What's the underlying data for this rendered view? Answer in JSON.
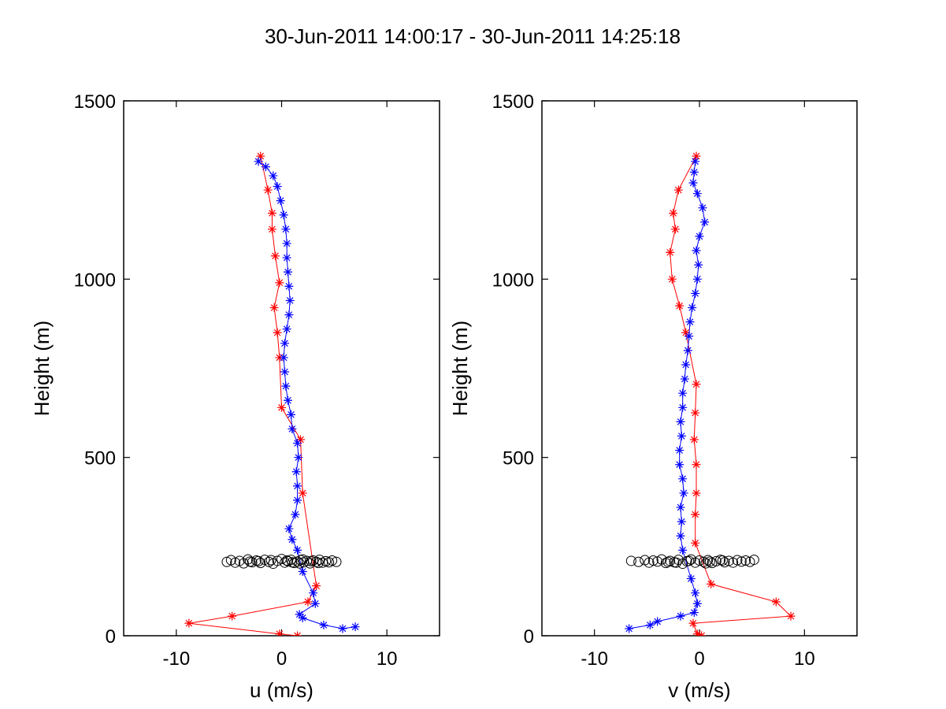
{
  "figure": {
    "title": "30-Jun-2011 14:00:17 - 30-Jun-2011 14:25:18"
  },
  "chart_data": [
    {
      "type": "line",
      "xlabel": "u (m/s)",
      "ylabel": "Height (m)",
      "xlim": [
        -15,
        15
      ],
      "ylim": [
        0,
        1500
      ],
      "xticks": [
        -10,
        0,
        10
      ],
      "yticks": [
        0,
        500,
        1000,
        1500
      ],
      "grid": false,
      "legend": "none",
      "series": [
        {
          "color": "#ff0000",
          "marker": "asterisk",
          "points": [
            [
              1.5,
              0
            ],
            [
              -0.2,
              5
            ],
            [
              -8.8,
              35
            ],
            [
              -4.7,
              55
            ],
            [
              2.5,
              95
            ],
            [
              3.3,
              140
            ],
            [
              2.0,
              400
            ],
            [
              1.8,
              550
            ],
            [
              0.0,
              640
            ],
            [
              -0.2,
              780
            ],
            [
              -0.4,
              850
            ],
            [
              -0.7,
              920
            ],
            [
              -0.2,
              990
            ],
            [
              -0.6,
              1065
            ],
            [
              -0.9,
              1140
            ],
            [
              -0.9,
              1185
            ],
            [
              -1.3,
              1250
            ],
            [
              -2.0,
              1345
            ]
          ]
        },
        {
          "color": "#0000ff",
          "marker": "asterisk",
          "points": [
            [
              7.0,
              25
            ],
            [
              5.8,
              20
            ],
            [
              4.0,
              30
            ],
            [
              2.0,
              50
            ],
            [
              1.7,
              60
            ],
            [
              3.2,
              90
            ],
            [
              3.0,
              120
            ],
            [
              2.0,
              180
            ],
            [
              1.5,
              240
            ],
            [
              1.0,
              270
            ],
            [
              0.7,
              300
            ],
            [
              1.3,
              340
            ],
            [
              1.5,
              380
            ],
            [
              1.5,
              420
            ],
            [
              1.4,
              460
            ],
            [
              1.6,
              500
            ],
            [
              1.5,
              540
            ],
            [
              1.0,
              580
            ],
            [
              0.9,
              620
            ],
            [
              0.6,
              660
            ],
            [
              0.4,
              700
            ],
            [
              0.3,
              740
            ],
            [
              0.2,
              780
            ],
            [
              0.3,
              820
            ],
            [
              0.5,
              860
            ],
            [
              0.7,
              900
            ],
            [
              0.8,
              940
            ],
            [
              0.7,
              980
            ],
            [
              0.6,
              1020
            ],
            [
              0.5,
              1060
            ],
            [
              0.5,
              1100
            ],
            [
              0.4,
              1140
            ],
            [
              0.2,
              1180
            ],
            [
              -0.1,
              1220
            ],
            [
              -0.4,
              1260
            ],
            [
              -0.8,
              1290
            ],
            [
              -1.5,
              1315
            ],
            [
              -2.2,
              1330
            ]
          ]
        },
        {
          "color": "#000000",
          "marker": "circle",
          "points": [
            [
              -5.2,
              207
            ],
            [
              -4.8,
              212
            ],
            [
              -4.4,
              205
            ],
            [
              -4.0,
              210
            ],
            [
              -3.6,
              203
            ],
            [
              -3.2,
              214
            ],
            [
              -2.8,
              206
            ],
            [
              -2.4,
              211
            ],
            [
              -2.0,
              204
            ],
            [
              -1.6,
              213
            ],
            [
              -1.2,
              207
            ],
            [
              -0.8,
              202
            ],
            [
              -0.4,
              210
            ],
            [
              0.0,
              215
            ],
            [
              0.3,
              205
            ],
            [
              0.6,
              209
            ],
            [
              0.9,
              213
            ],
            [
              1.2,
              204
            ],
            [
              1.5,
              208
            ],
            [
              1.8,
              212
            ],
            [
              2.1,
              206
            ],
            [
              2.4,
              210
            ],
            [
              2.7,
              203
            ],
            [
              3.0,
              211
            ],
            [
              3.3,
              207
            ],
            [
              3.6,
              213
            ],
            [
              3.9,
              205
            ],
            [
              4.2,
              209
            ],
            [
              4.5,
              206
            ],
            [
              4.8,
              211
            ],
            [
              5.2,
              207
            ],
            [
              -3.0,
              208
            ],
            [
              -1.0,
              212
            ],
            [
              1.0,
              206
            ],
            [
              2.0,
              214
            ],
            [
              2.8,
              209
            ],
            [
              3.5,
              204
            ],
            [
              0.5,
              211
            ],
            [
              -2.2,
              209
            ],
            [
              1.7,
              203
            ]
          ]
        }
      ]
    },
    {
      "type": "line",
      "xlabel": "v (m/s)",
      "ylabel": "Height (m)",
      "xlim": [
        -15,
        15
      ],
      "ylim": [
        0,
        1500
      ],
      "xticks": [
        -10,
        0,
        10
      ],
      "yticks": [
        0,
        500,
        1000,
        1500
      ],
      "grid": false,
      "legend": "none",
      "series": [
        {
          "color": "#ff0000",
          "marker": "asterisk",
          "points": [
            [
              0.2,
              0
            ],
            [
              -0.2,
              5
            ],
            [
              -0.6,
              35
            ],
            [
              8.7,
              55
            ],
            [
              7.3,
              95
            ],
            [
              1.1,
              145
            ],
            [
              -0.4,
              260
            ],
            [
              -0.4,
              340
            ],
            [
              -0.3,
              400
            ],
            [
              -0.3,
              480
            ],
            [
              -0.5,
              550
            ],
            [
              -0.4,
              625
            ],
            [
              -0.3,
              705
            ],
            [
              -1.3,
              850
            ],
            [
              -1.9,
              925
            ],
            [
              -2.6,
              1000
            ],
            [
              -2.8,
              1075
            ],
            [
              -2.3,
              1140
            ],
            [
              -2.5,
              1185
            ],
            [
              -2.0,
              1250
            ],
            [
              -0.3,
              1345
            ]
          ]
        },
        {
          "color": "#0000ff",
          "marker": "asterisk",
          "points": [
            [
              -6.7,
              20
            ],
            [
              -4.7,
              30
            ],
            [
              -4.0,
              40
            ],
            [
              -1.8,
              55
            ],
            [
              -0.5,
              65
            ],
            [
              -0.2,
              90
            ],
            [
              -0.4,
              120
            ],
            [
              -0.8,
              160
            ],
            [
              -1.6,
              240
            ],
            [
              -1.8,
              280
            ],
            [
              -1.7,
              320
            ],
            [
              -1.8,
              360
            ],
            [
              -1.5,
              400
            ],
            [
              -1.6,
              440
            ],
            [
              -1.9,
              480
            ],
            [
              -1.9,
              520
            ],
            [
              -1.7,
              560
            ],
            [
              -1.8,
              600
            ],
            [
              -1.6,
              640
            ],
            [
              -1.6,
              680
            ],
            [
              -1.4,
              720
            ],
            [
              -1.3,
              760
            ],
            [
              -1.1,
              800
            ],
            [
              -1.0,
              840
            ],
            [
              -0.9,
              880
            ],
            [
              -0.7,
              920
            ],
            [
              -0.4,
              960
            ],
            [
              -0.2,
              1000
            ],
            [
              -0.1,
              1040
            ],
            [
              -0.3,
              1080
            ],
            [
              0.0,
              1120
            ],
            [
              0.5,
              1160
            ],
            [
              0.3,
              1200
            ],
            [
              -0.2,
              1240
            ],
            [
              -0.6,
              1270
            ],
            [
              -0.5,
              1300
            ],
            [
              -0.4,
              1330
            ]
          ]
        },
        {
          "color": "#000000",
          "marker": "circle",
          "points": [
            [
              -6.5,
              210
            ],
            [
              -5.8,
              207
            ],
            [
              -5.2,
              212
            ],
            [
              -4.8,
              205
            ],
            [
              -4.4,
              211
            ],
            [
              -4.0,
              208
            ],
            [
              -3.6,
              214
            ],
            [
              -3.2,
              204
            ],
            [
              -2.8,
              210
            ],
            [
              -2.4,
              206
            ],
            [
              -2.0,
              213
            ],
            [
              -1.6,
              202
            ],
            [
              -1.2,
              209
            ],
            [
              -0.8,
              214
            ],
            [
              -0.4,
              205
            ],
            [
              0.0,
              211
            ],
            [
              0.4,
              207
            ],
            [
              0.8,
              212
            ],
            [
              1.2,
              204
            ],
            [
              1.6,
              209
            ],
            [
              2.0,
              213
            ],
            [
              2.4,
              206
            ],
            [
              2.8,
              210
            ],
            [
              3.2,
              205
            ],
            [
              3.6,
              212
            ],
            [
              4.0,
              208
            ],
            [
              4.4,
              211
            ],
            [
              4.8,
              207
            ],
            [
              5.2,
              213
            ],
            [
              -3.0,
              207
            ],
            [
              -1.0,
              210
            ],
            [
              1.0,
              208
            ],
            [
              2.2,
              211
            ],
            [
              -2.2,
              205
            ],
            [
              0.6,
              203
            ]
          ]
        }
      ]
    }
  ]
}
